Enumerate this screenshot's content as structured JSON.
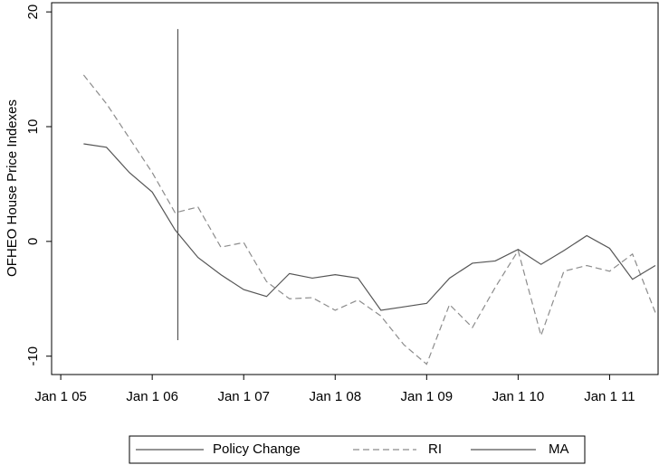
{
  "chart_data": {
    "type": "line",
    "y_label": "OFHEO House Price Indexes",
    "xlim": [
      2004.9,
      2011.53
    ],
    "ylim": [
      -11.6,
      20.8
    ],
    "xticks": [
      {
        "value": 2005,
        "label": "Jan 1 05"
      },
      {
        "value": 2006,
        "label": "Jan 1 06"
      },
      {
        "value": 2007,
        "label": "Jan 1 07"
      },
      {
        "value": 2008,
        "label": "Jan 1 08"
      },
      {
        "value": 2009,
        "label": "Jan 1 09"
      },
      {
        "value": 2010,
        "label": "Jan 1 10"
      },
      {
        "value": 2011,
        "label": "Jan 1 11"
      }
    ],
    "yticks": [
      -10,
      0,
      10,
      20
    ],
    "series": [
      {
        "name": "Policy Change",
        "color": "#555555",
        "dash": false,
        "x": [
          2006.28,
          2006.28
        ],
        "values": [
          18.5,
          -8.6
        ]
      },
      {
        "name": "RI",
        "color": "#8c8c8c",
        "dash": true,
        "x": [
          2005.25,
          2005.5,
          2005.75,
          2006.0,
          2006.25,
          2006.5,
          2006.75,
          2007.0,
          2007.25,
          2007.5,
          2007.75,
          2008.0,
          2008.25,
          2008.5,
          2008.75,
          2009.0,
          2009.25,
          2009.5,
          2009.75,
          2010.0,
          2010.25,
          2010.5,
          2010.75,
          2011.0,
          2011.25,
          2011.5
        ],
        "values": [
          14.5,
          12,
          9,
          6,
          2.5,
          3.0,
          -0.5,
          -0.1,
          -3.5,
          -5,
          -4.9,
          -6,
          -5.1,
          -6.5,
          -9,
          -10.7,
          -5.5,
          -7.5,
          -4,
          -0.8,
          -8.2,
          -2.6,
          -2.1,
          -2.6,
          -1.1,
          -6.2
        ]
      },
      {
        "name": "MA",
        "color": "#555555",
        "dash": false,
        "x": [
          2005.25,
          2005.5,
          2005.75,
          2006.0,
          2006.25,
          2006.5,
          2006.75,
          2007.0,
          2007.25,
          2007.5,
          2007.75,
          2008.0,
          2008.25,
          2008.5,
          2008.75,
          2009.0,
          2009.25,
          2009.5,
          2009.75,
          2010.0,
          2010.25,
          2010.5,
          2010.75,
          2011.0,
          2011.25,
          2011.5
        ],
        "values": [
          8.5,
          8.2,
          6,
          4.3,
          1.0,
          -1.4,
          -2.9,
          -4.2,
          -4.8,
          -2.8,
          -3.2,
          -2.9,
          -3.2,
          -6.0,
          -5.7,
          -5.4,
          -3.2,
          -1.9,
          -1.7,
          -0.7,
          -2.0,
          -0.8,
          0.5,
          -0.6,
          -3.3,
          -2.1
        ]
      }
    ]
  }
}
